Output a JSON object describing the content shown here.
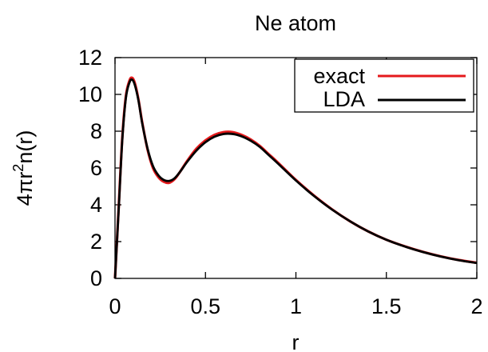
{
  "chart_data": {
    "type": "line",
    "title": "Ne atom",
    "xlabel": "r",
    "ylabel": {
      "base": "4πr",
      "sup": "2",
      "tail": "n(r)"
    },
    "xlim": [
      0,
      2
    ],
    "ylim": [
      0,
      12
    ],
    "xticks": [
      0,
      0.5,
      1,
      1.5,
      2
    ],
    "xtick_labels": [
      "0",
      "0.5",
      "1",
      "1.5",
      "2"
    ],
    "yticks": [
      0,
      2,
      4,
      6,
      8,
      10,
      12
    ],
    "ytick_labels": [
      "0",
      "2",
      "4",
      "6",
      "8",
      "10",
      "12"
    ],
    "grid": false,
    "legend_position": "top-right",
    "series": [
      {
        "name": "exact",
        "color": "#e41a1c",
        "x": [
          0,
          0.02,
          0.04,
          0.06,
          0.08,
          0.095,
          0.11,
          0.13,
          0.15,
          0.18,
          0.21,
          0.24,
          0.27,
          0.3,
          0.33,
          0.36,
          0.4,
          0.45,
          0.5,
          0.55,
          0.6,
          0.65,
          0.7,
          0.75,
          0.8,
          0.85,
          0.9,
          1.0,
          1.1,
          1.2,
          1.3,
          1.4,
          1.5,
          1.6,
          1.7,
          1.8,
          1.9,
          2.0
        ],
        "y": [
          0,
          3.8,
          7.6,
          9.9,
          10.75,
          10.9,
          10.6,
          9.7,
          8.5,
          7.0,
          6.0,
          5.5,
          5.25,
          5.2,
          5.4,
          5.8,
          6.4,
          7.05,
          7.5,
          7.8,
          7.95,
          7.95,
          7.8,
          7.55,
          7.2,
          6.75,
          6.3,
          5.35,
          4.5,
          3.75,
          3.1,
          2.55,
          2.1,
          1.75,
          1.45,
          1.2,
          1.0,
          0.85
        ]
      },
      {
        "name": "LDA",
        "color": "#000000",
        "x": [
          0,
          0.02,
          0.04,
          0.06,
          0.08,
          0.095,
          0.11,
          0.13,
          0.15,
          0.18,
          0.21,
          0.24,
          0.27,
          0.3,
          0.33,
          0.36,
          0.4,
          0.45,
          0.5,
          0.55,
          0.6,
          0.65,
          0.7,
          0.75,
          0.8,
          0.85,
          0.9,
          1.0,
          1.1,
          1.2,
          1.3,
          1.4,
          1.5,
          1.6,
          1.7,
          1.8,
          1.9,
          2.0
        ],
        "y": [
          0,
          3.7,
          7.5,
          9.8,
          10.65,
          10.8,
          10.5,
          9.65,
          8.45,
          7.05,
          6.1,
          5.6,
          5.35,
          5.3,
          5.45,
          5.8,
          6.35,
          6.95,
          7.4,
          7.7,
          7.85,
          7.85,
          7.72,
          7.48,
          7.15,
          6.7,
          6.25,
          5.32,
          4.48,
          3.74,
          3.1,
          2.55,
          2.1,
          1.74,
          1.44,
          1.19,
          0.99,
          0.84
        ]
      }
    ]
  }
}
